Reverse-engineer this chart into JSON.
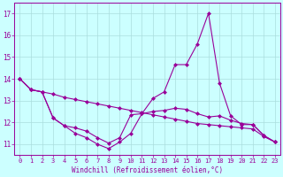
{
  "x": [
    0,
    1,
    2,
    3,
    4,
    5,
    6,
    7,
    8,
    9,
    10,
    11,
    12,
    13,
    14,
    15,
    16,
    17,
    18,
    19,
    20,
    21,
    22,
    23
  ],
  "line1": [
    14.0,
    13.5,
    13.4,
    13.3,
    13.15,
    13.05,
    12.95,
    12.85,
    12.75,
    12.65,
    12.55,
    12.45,
    12.35,
    12.25,
    12.15,
    12.05,
    11.95,
    11.9,
    11.85,
    11.8,
    11.75,
    11.7,
    11.35,
    11.1
  ],
  "line2": [
    14.0,
    13.5,
    13.4,
    12.2,
    11.85,
    11.5,
    11.3,
    11.0,
    10.8,
    11.1,
    11.5,
    12.4,
    13.1,
    13.4,
    14.65,
    14.65,
    15.6,
    17.0,
    13.8,
    12.3,
    11.9,
    11.9,
    11.4,
    11.1
  ],
  "line3": [
    14.0,
    13.5,
    13.4,
    12.2,
    11.85,
    11.75,
    11.6,
    11.3,
    11.05,
    11.3,
    12.35,
    12.4,
    12.5,
    12.55,
    12.65,
    12.6,
    12.4,
    12.25,
    12.3,
    12.1,
    11.95,
    11.9,
    11.4,
    11.1
  ],
  "color": "#990099",
  "bg_color": "#ccffff",
  "grid_color": "#aadddd",
  "xlabel": "Windchill (Refroidissement éolien,°C)",
  "xlim": [
    -0.5,
    23.5
  ],
  "ylim": [
    10.5,
    17.5
  ],
  "yticks": [
    11,
    12,
    13,
    14,
    15,
    16,
    17
  ],
  "xticks": [
    0,
    1,
    2,
    3,
    4,
    5,
    6,
    7,
    8,
    9,
    10,
    11,
    12,
    13,
    14,
    15,
    16,
    17,
    18,
    19,
    20,
    21,
    22,
    23
  ],
  "marker": "D",
  "markersize": 2.0,
  "linewidth": 0.8,
  "tick_fontsize": 5.0,
  "xlabel_fontsize": 5.5
}
